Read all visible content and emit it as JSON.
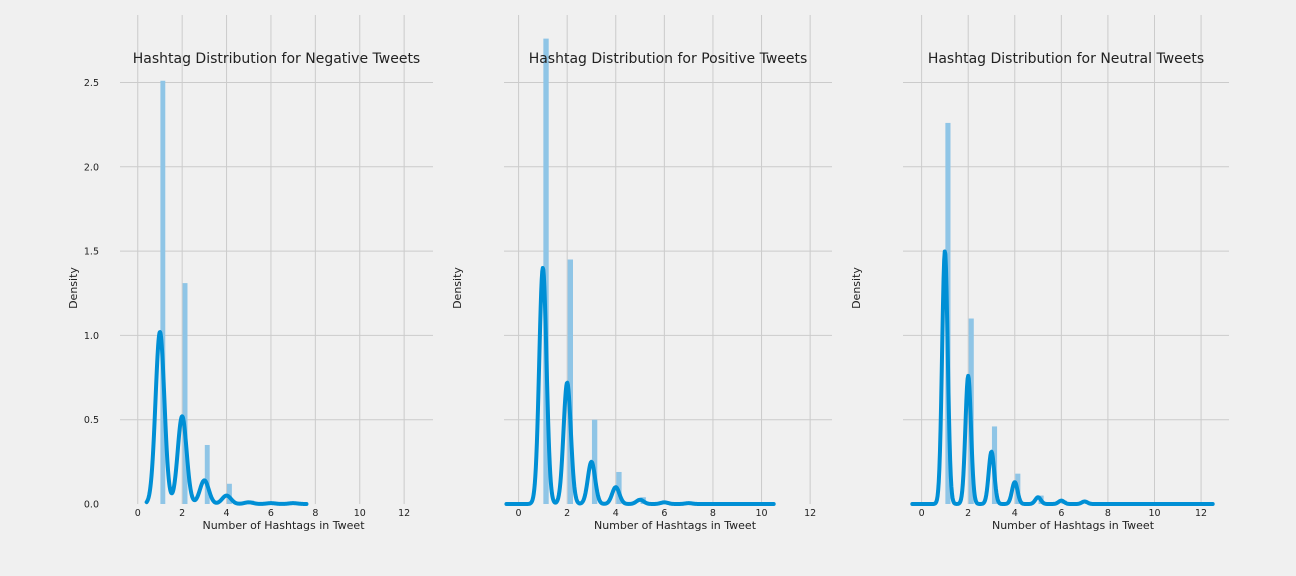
{
  "chart_data": [
    {
      "type": "bar",
      "title": "Hashtag Distribution for Negative Tweets",
      "xlabel": "Number of Hashtags in Tweet",
      "ylabel": "Density",
      "xticks": [
        "0",
        "2",
        "4",
        "6",
        "8",
        "10",
        "12"
      ],
      "yticks": [
        "0.0",
        "0.5",
        "1.0",
        "1.5",
        "2.0",
        "2.5"
      ],
      "xlim": [
        -0.8,
        13.3
      ],
      "ylim": [
        0,
        2.9
      ],
      "grid": true,
      "histogram": {
        "name": "histogram",
        "x": [
          1,
          2,
          3,
          4,
          5,
          6,
          7
        ],
        "values": [
          2.51,
          1.31,
          0.35,
          0.12,
          0.02,
          0.01,
          0.01
        ]
      },
      "kde": {
        "name": "kde",
        "x_range": [
          0.4,
          7.6
        ],
        "peaks": [
          {
            "x": 1,
            "height": 1.02,
            "width": 0.2
          },
          {
            "x": 2,
            "height": 0.52,
            "width": 0.2
          },
          {
            "x": 3,
            "height": 0.14,
            "width": 0.2
          },
          {
            "x": 4,
            "height": 0.05,
            "width": 0.2
          },
          {
            "x": 5,
            "height": 0.01,
            "width": 0.2
          },
          {
            "x": 6,
            "height": 0.005,
            "width": 0.2
          },
          {
            "x": 7,
            "height": 0.005,
            "width": 0.2
          }
        ]
      }
    },
    {
      "type": "bar",
      "title": "Hashtag Distribution for Positive Tweets",
      "xlabel": "Number of Hashtags in Tweet",
      "ylabel": "Density",
      "xticks": [
        "0",
        "2",
        "4",
        "6",
        "8",
        "10",
        "12"
      ],
      "yticks": [],
      "xlim": [
        -0.6,
        12.9
      ],
      "ylim": [
        0,
        2.9
      ],
      "grid": true,
      "histogram": {
        "name": "histogram",
        "x": [
          1,
          2,
          3,
          4,
          5,
          6,
          7
        ],
        "values": [
          2.76,
          1.45,
          0.5,
          0.19,
          0.04,
          0.01,
          0.005
        ]
      },
      "kde": {
        "name": "kde",
        "x_range": [
          -0.5,
          10.5
        ],
        "peaks": [
          {
            "x": 1,
            "height": 1.4,
            "width": 0.15
          },
          {
            "x": 2,
            "height": 0.72,
            "width": 0.15
          },
          {
            "x": 3,
            "height": 0.25,
            "width": 0.15
          },
          {
            "x": 4,
            "height": 0.1,
            "width": 0.15
          },
          {
            "x": 5,
            "height": 0.025,
            "width": 0.15
          },
          {
            "x": 6,
            "height": 0.01,
            "width": 0.15
          },
          {
            "x": 7,
            "height": 0.005,
            "width": 0.15
          }
        ]
      }
    },
    {
      "type": "bar",
      "title": "Hashtag Distribution for Neutral Tweets",
      "xlabel": "Number of Hashtags in Tweet",
      "ylabel": "Density",
      "xticks": [
        "0",
        "2",
        "4",
        "6",
        "8",
        "10",
        "12"
      ],
      "yticks": [],
      "xlim": [
        -0.8,
        13.2
      ],
      "ylim": [
        0,
        2.9
      ],
      "grid": true,
      "histogram": {
        "name": "histogram",
        "x": [
          1,
          2,
          3,
          4,
          5,
          6,
          7
        ],
        "values": [
          2.26,
          1.1,
          0.46,
          0.18,
          0.05,
          0.02,
          0.01
        ]
      },
      "kde": {
        "name": "kde",
        "x_range": [
          -0.4,
          12.5
        ],
        "peaks": [
          {
            "x": 1,
            "height": 1.5,
            "width": 0.12
          },
          {
            "x": 2,
            "height": 0.76,
            "width": 0.12
          },
          {
            "x": 3,
            "height": 0.31,
            "width": 0.12
          },
          {
            "x": 4,
            "height": 0.13,
            "width": 0.12
          },
          {
            "x": 5,
            "height": 0.04,
            "width": 0.12
          },
          {
            "x": 6,
            "height": 0.02,
            "width": 0.12
          },
          {
            "x": 7,
            "height": 0.015,
            "width": 0.12
          }
        ]
      }
    }
  ]
}
